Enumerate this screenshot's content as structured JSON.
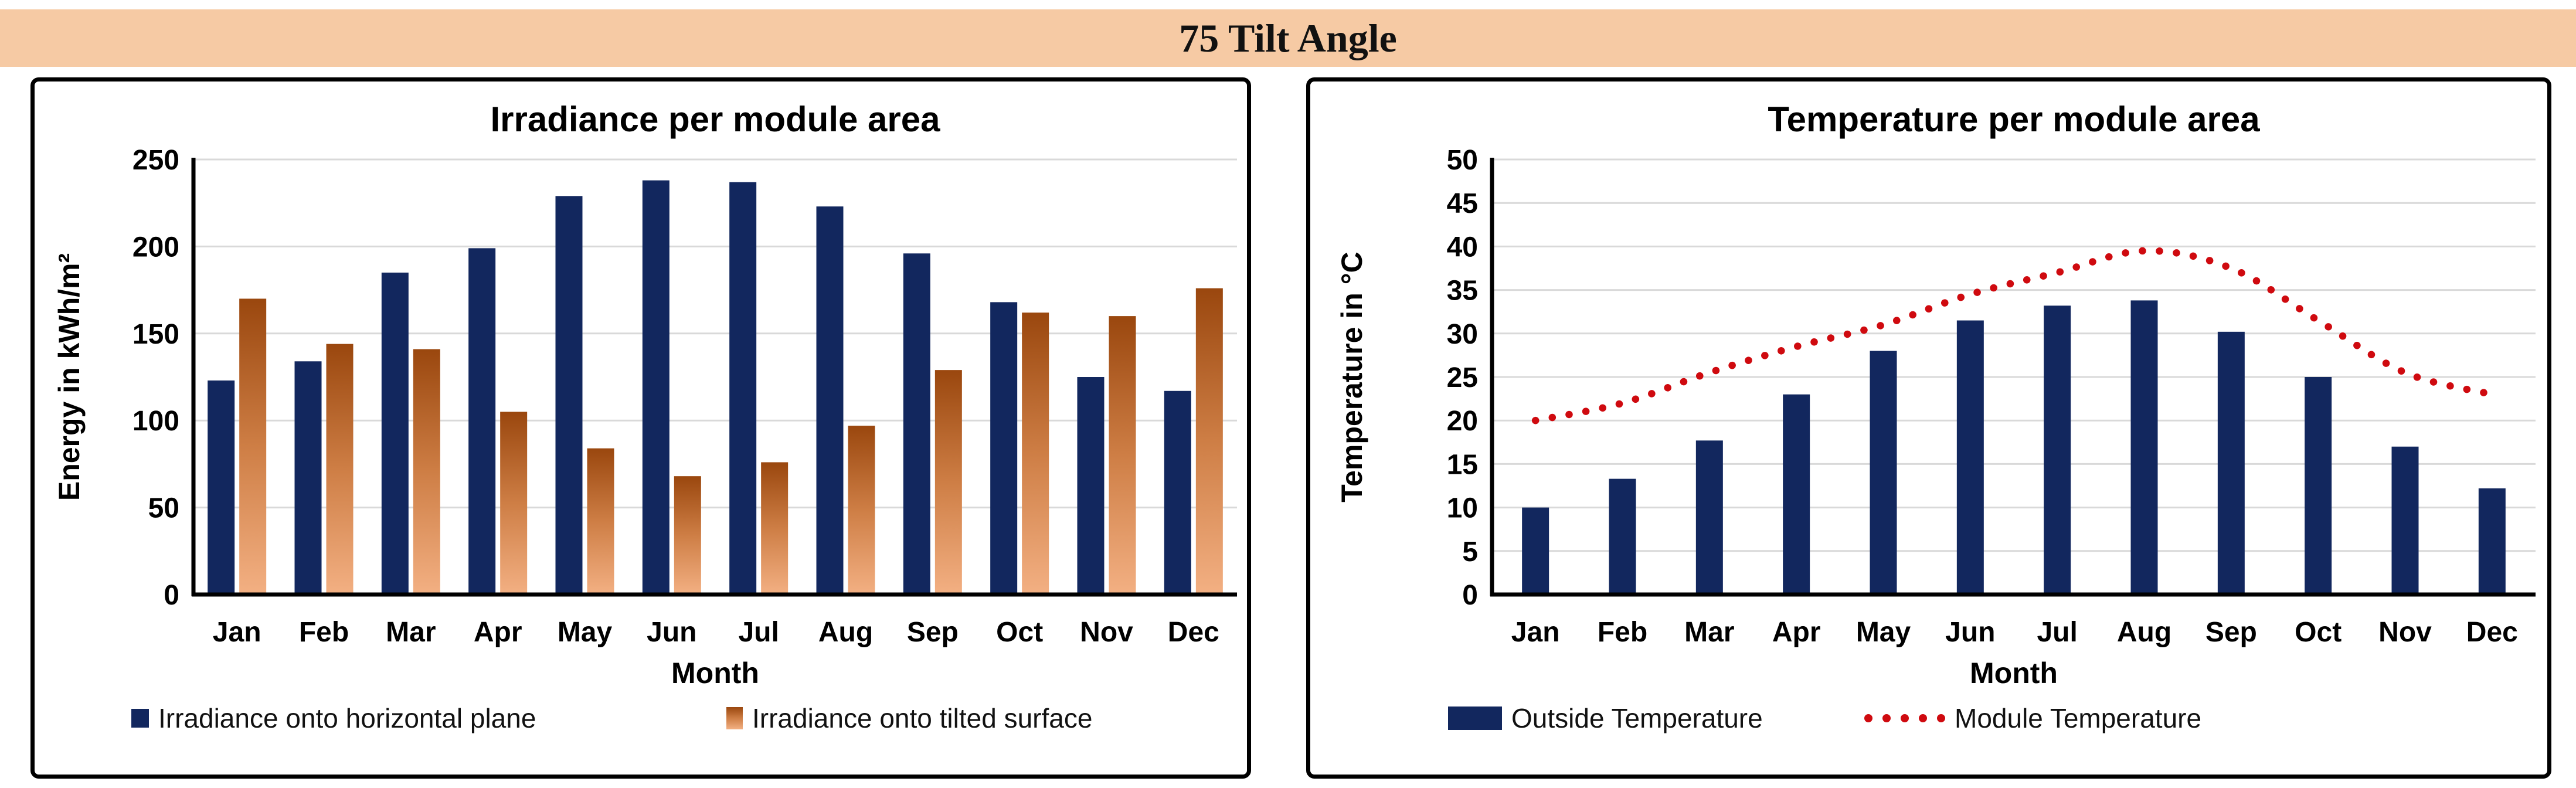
{
  "banner": {
    "title": "75 Tilt Angle",
    "bg_color": "#F6CAA4"
  },
  "colors": {
    "navy": "#12275E",
    "orange_gradient_top": "#9A470E",
    "orange_gradient_mid": "#CE7E45",
    "orange_gradient_bottom": "#F3B083",
    "red_dotted": "#CF0A0F",
    "gridline": "#D9D9D9",
    "axis": "#000000"
  },
  "chart_data": [
    {
      "type": "bar",
      "title": "Irradiance per module area",
      "xlabel": "Month",
      "ylabel": "Energy in kWh/m²",
      "ylim": [
        0,
        250
      ],
      "ytick_step": 50,
      "grid": true,
      "legend_position": "bottom",
      "categories": [
        "Jan",
        "Feb",
        "Mar",
        "Apr",
        "May",
        "Jun",
        "Jul",
        "Aug",
        "Sep",
        "Oct",
        "Nov",
        "Dec"
      ],
      "series": [
        {
          "name": "Irradiance onto horizontal plane",
          "style": "bar-solid",
          "color": "#12275E",
          "values": [
            123,
            134,
            185,
            199,
            229,
            238,
            237,
            223,
            196,
            168,
            125,
            117
          ]
        },
        {
          "name": "Irradiance onto tilted surface",
          "style": "bar-gradient",
          "color": "#F3B083",
          "values": [
            170,
            144,
            141,
            105,
            84,
            68,
            76,
            97,
            129,
            162,
            160,
            176
          ]
        }
      ]
    },
    {
      "type": "bar+line",
      "title": "Temperature per module area",
      "xlabel": "Month",
      "ylabel": "Temperature in °C",
      "ylim": [
        0,
        50
      ],
      "ytick_step": 5,
      "grid": true,
      "legend_position": "bottom",
      "categories": [
        "Jan",
        "Feb",
        "Mar",
        "Apr",
        "May",
        "Jun",
        "Jul",
        "Aug",
        "Sep",
        "Oct",
        "Nov",
        "Dec"
      ],
      "series": [
        {
          "name": "Outside Temperature",
          "style": "bar-solid",
          "color": "#12275E",
          "values": [
            10,
            13.3,
            17.7,
            23,
            28,
            31.5,
            33.2,
            33.8,
            30.2,
            25,
            17,
            12.2
          ]
        },
        {
          "name": "Module Temperature",
          "style": "dotted-line",
          "color": "#CF0A0F",
          "values": [
            20,
            22,
            25.5,
            28.5,
            31,
            34.5,
            37,
            39.5,
            37.5,
            31.5,
            25.5,
            23
          ]
        }
      ]
    }
  ]
}
